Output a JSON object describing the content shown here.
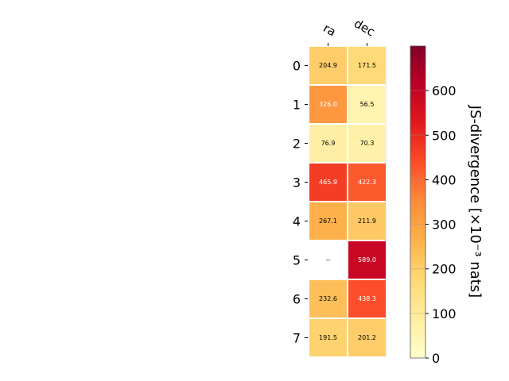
{
  "chart_data": {
    "type": "heatmap",
    "title": "",
    "columns": [
      "ra",
      "dec"
    ],
    "rows": [
      "0",
      "1",
      "2",
      "3",
      "4",
      "5",
      "6",
      "7"
    ],
    "values": [
      [
        204.9,
        171.5
      ],
      [
        326.0,
        56.5
      ],
      [
        76.9,
        70.3
      ],
      [
        465.9,
        422.3
      ],
      [
        267.1,
        211.9
      ],
      [
        null,
        589.0
      ],
      [
        232.6,
        438.3
      ],
      [
        191.5,
        201.2
      ]
    ],
    "missing_label": "--",
    "colorbar": {
      "label": "JS-divergence [×10⁻³ nats]",
      "range": [
        0,
        700
      ],
      "ticks": [
        0,
        100,
        200,
        300,
        400,
        500,
        600
      ],
      "colormap": "YlOrRd",
      "colormap_colors": [
        "#ffffcc",
        "#ffeda0",
        "#fed976",
        "#feb24c",
        "#fd8d3c",
        "#fc4e2a",
        "#e31a1c",
        "#bd0026",
        "#800026"
      ]
    }
  }
}
